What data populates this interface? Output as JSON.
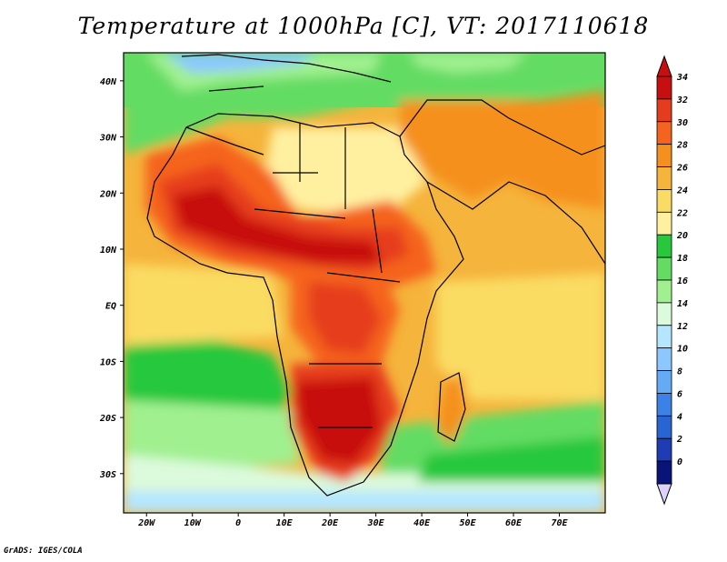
{
  "title": "Temperature at 1000hPa [C], VT: 2017110618",
  "footer": "GrADS: IGES/COLA",
  "map": {
    "projection": "lat-lon",
    "lon_range": [
      -25,
      80
    ],
    "lat_range": [
      -37,
      45
    ],
    "lat_ticks": [
      {
        "value": 40,
        "label": "40N"
      },
      {
        "value": 30,
        "label": "30N"
      },
      {
        "value": 20,
        "label": "20N"
      },
      {
        "value": 10,
        "label": "10N"
      },
      {
        "value": 0,
        "label": "EQ"
      },
      {
        "value": -10,
        "label": "10S"
      },
      {
        "value": -20,
        "label": "20S"
      },
      {
        "value": -30,
        "label": "30S"
      }
    ],
    "lon_ticks": [
      {
        "value": -20,
        "label": "20W"
      },
      {
        "value": -10,
        "label": "10W"
      },
      {
        "value": 0,
        "label": "0"
      },
      {
        "value": 10,
        "label": "10E"
      },
      {
        "value": 20,
        "label": "20E"
      },
      {
        "value": 30,
        "label": "30E"
      },
      {
        "value": 40,
        "label": "40E"
      },
      {
        "value": 50,
        "label": "50E"
      },
      {
        "value": 60,
        "label": "60E"
      },
      {
        "value": 70,
        "label": "70E"
      }
    ]
  },
  "colorbar": {
    "labels": [
      "34",
      "32",
      "30",
      "28",
      "26",
      "24",
      "22",
      "20",
      "18",
      "16",
      "14",
      "12",
      "10",
      "8",
      "6",
      "4",
      "2",
      "0"
    ],
    "colors": [
      "#c80f0f",
      "#e63c1e",
      "#f5641e",
      "#f5901e",
      "#f5b43c",
      "#fadc64",
      "#fff0a0",
      "#28c83c",
      "#64dc64",
      "#a0f090",
      "#dcfadc",
      "#b4e6ff",
      "#8cc8ff",
      "#64aaf5",
      "#3c82e6",
      "#2864d2",
      "#1e3cb4",
      "#0a1478"
    ],
    "top_arrow_color": "#c80f0f",
    "bottom_arrow_color": "#dcd2fa"
  }
}
